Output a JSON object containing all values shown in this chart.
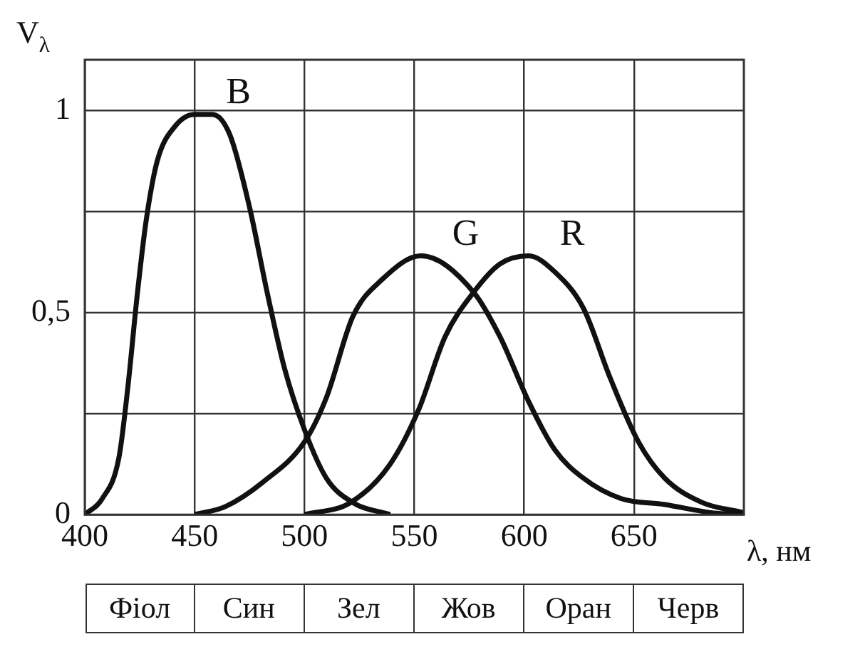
{
  "chart_data": {
    "type": "line",
    "xlabel": "λ, нм",
    "ylabel": "V$_{λ}$",
    "xlim": [
      400,
      700
    ],
    "xticks": [
      400,
      450,
      500,
      550,
      600,
      650
    ],
    "ylim": [
      0,
      1.125
    ],
    "yticks": [
      0,
      {
        "value": 0.25,
        "label": null
      },
      {
        "value": 0.5,
        "label": "0,5"
      },
      {
        "value": 0.75,
        "label": null
      },
      1
    ],
    "grid": true,
    "legend": false,
    "marker": "none",
    "line_style": "solid",
    "series": [
      {
        "name": "B",
        "color": "#111111",
        "x": [
          400,
          408,
          415.5,
          419.5,
          424,
          428,
          433,
          441,
          450,
          458,
          466,
          475,
          483,
          491,
          500,
          510,
          522,
          539
        ],
        "values": [
          0,
          0.04,
          0.14,
          0.31,
          0.55,
          0.73,
          0.875,
          0.96,
          0.99,
          0.99,
          0.94,
          0.76,
          0.55,
          0.36,
          0.21,
          0.09,
          0.03,
          0
        ]
      },
      {
        "name": "G",
        "color": "#111111",
        "x": [
          450,
          464,
          481,
          500,
          510,
          522,
          535,
          553,
          577,
          589,
          602,
          614,
          627,
          644,
          664,
          685,
          700
        ],
        "values": [
          0,
          0.02,
          0.08,
          0.18,
          0.29,
          0.49,
          0.58,
          0.64,
          0.55,
          0.44,
          0.28,
          0.16,
          0.09,
          0.04,
          0.025,
          0.005,
          0
        ]
      },
      {
        "name": "R",
        "color": "#111111",
        "x": [
          500,
          521,
          539,
          552,
          564,
          577,
          589,
          602,
          614,
          627,
          639,
          652,
          664,
          681,
          700
        ],
        "values": [
          0,
          0.03,
          0.125,
          0.26,
          0.44,
          0.55,
          0.62,
          0.64,
          0.6,
          0.51,
          0.34,
          0.18,
          0.09,
          0.03,
          0.005
        ]
      }
    ],
    "annotations": [
      "Фіол",
      "Син",
      "Зел",
      "Жов",
      "Оран",
      "Черв"
    ]
  }
}
